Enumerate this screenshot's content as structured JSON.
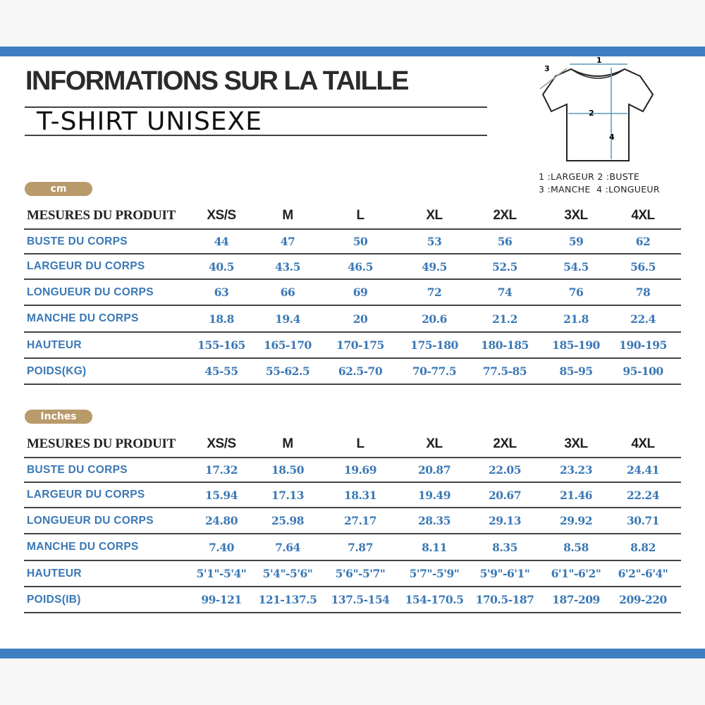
{
  "title": "INFORMATIONS SUR LA TAILLE",
  "subtitle": "T-SHIRT UNISEXE",
  "colors": {
    "accent_bar": "#3d7fc1",
    "pill": "#b89a6b",
    "value_text": "#3a78b5"
  },
  "diagram": {
    "labels": [
      "1",
      "2",
      "3",
      "4"
    ],
    "legend": [
      "1 :LARGEUR",
      "2 :BUSTE",
      "3 :MANCHE",
      "4 :LONGUEUR"
    ]
  },
  "tables": [
    {
      "unit": "cm",
      "header": "MESURES DU PRODUIT",
      "sizes": [
        "XS/S",
        "M",
        "L",
        "XL",
        "2XL",
        "3XL",
        "4XL"
      ],
      "rows": [
        {
          "label": "BUSTE DU CORPS",
          "values": [
            "44",
            "47",
            "50",
            "53",
            "56",
            "59",
            "62"
          ]
        },
        {
          "label": "LARGEUR DU CORPS",
          "values": [
            "40.5",
            "43.5",
            "46.5",
            "49.5",
            "52.5",
            "54.5",
            "56.5"
          ]
        },
        {
          "label": "LONGUEUR DU CORPS",
          "values": [
            "63",
            "66",
            "69",
            "72",
            "74",
            "76",
            "78"
          ]
        },
        {
          "label": "MANCHE DU CORPS",
          "values": [
            "18.8",
            "19.4",
            "20",
            "20.6",
            "21.2",
            "21.8",
            "22.4"
          ]
        },
        {
          "label": "HAUTEUR",
          "values": [
            "155-165",
            "165-170",
            "170-175",
            "175-180",
            "180-185",
            "185-190",
            "190-195"
          ]
        },
        {
          "label": "POIDS(KG)",
          "values": [
            "45-55",
            "55-62.5",
            "62.5-70",
            "70-77.5",
            "77.5-85",
            "85-95",
            "95-100"
          ]
        }
      ]
    },
    {
      "unit": "Inches",
      "header": "MESURES DU PRODUIT",
      "sizes": [
        "XS/S",
        "M",
        "L",
        "XL",
        "2XL",
        "3XL",
        "4XL"
      ],
      "rows": [
        {
          "label": "BUSTE DU CORPS",
          "values": [
            "17.32",
            "18.50",
            "19.69",
            "20.87",
            "22.05",
            "23.23",
            "24.41"
          ]
        },
        {
          "label": "LARGEUR DU CORPS",
          "values": [
            "15.94",
            "17.13",
            "18.31",
            "19.49",
            "20.67",
            "21.46",
            "22.24"
          ]
        },
        {
          "label": "LONGUEUR DU CORPS",
          "values": [
            "24.80",
            "25.98",
            "27.17",
            "28.35",
            "29.13",
            "29.92",
            "30.71"
          ]
        },
        {
          "label": "MANCHE DU CORPS",
          "values": [
            "7.40",
            "7.64",
            "7.87",
            "8.11",
            "8.35",
            "8.58",
            "8.82"
          ]
        },
        {
          "label": "HAUTEUR",
          "values": [
            "5'1\"-5'4\"",
            "5'4\"-5'6\"",
            "5'6\"-5'7\"",
            "5'7\"-5'9\"",
            "5'9\"-6'1\"",
            "6'1\"-6'2\"",
            "6'2\"-6'4\""
          ]
        },
        {
          "label": "POIDS(IB)",
          "values": [
            "99-121",
            "121-137.5",
            "137.5-154",
            "154-170.5",
            "170.5-187",
            "187-209",
            "209-220"
          ]
        }
      ]
    }
  ]
}
